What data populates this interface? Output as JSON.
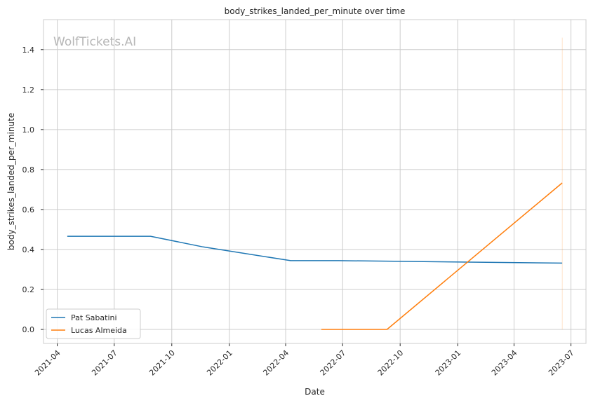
{
  "chart_data": {
    "type": "line",
    "title": "body_strikes_landed_per_minute over time",
    "xlabel": "Date",
    "ylabel": "body_strikes_landed_per_minute",
    "watermark": "WolfTickets.AI",
    "x_ticks": [
      "2021-04",
      "2021-07",
      "2021-10",
      "2022-01",
      "2022-04",
      "2022-07",
      "2022-10",
      "2023-01",
      "2023-04",
      "2023-07"
    ],
    "y_ticks": [
      "0.0",
      "0.2",
      "0.4",
      "0.6",
      "0.8",
      "1.0",
      "1.2",
      "1.4"
    ],
    "xlim": [
      "2021-03-10",
      "2023-07-25"
    ],
    "ylim": [
      -0.07,
      1.55
    ],
    "grid": true,
    "legend_position": "lower-left",
    "colors": {
      "Pat Sabatini": "#1f77b4",
      "Lucas Almeida": "#ff7f0e",
      "grid": "#cccccc",
      "axis": "#cccccc"
    },
    "series": [
      {
        "name": "Pat Sabatini",
        "color": "#1f77b4",
        "x": [
          "2021-04-17",
          "2021-08-28",
          "2021-11-20",
          "2022-04-09",
          "2022-06-25",
          "2023-06-17"
        ],
        "values": [
          0.466,
          0.466,
          0.413,
          0.344,
          0.344,
          0.332
        ]
      },
      {
        "name": "Lucas Almeida",
        "color": "#ff7f0e",
        "x": [
          "2022-05-28",
          "2022-09-10",
          "2023-06-17"
        ],
        "values": [
          0.0,
          0.0,
          0.733
        ]
      }
    ],
    "vertical_marker": {
      "x": "2023-06-17",
      "y_range": [
        0.0,
        1.46
      ],
      "color": "#ff7f0e"
    }
  }
}
